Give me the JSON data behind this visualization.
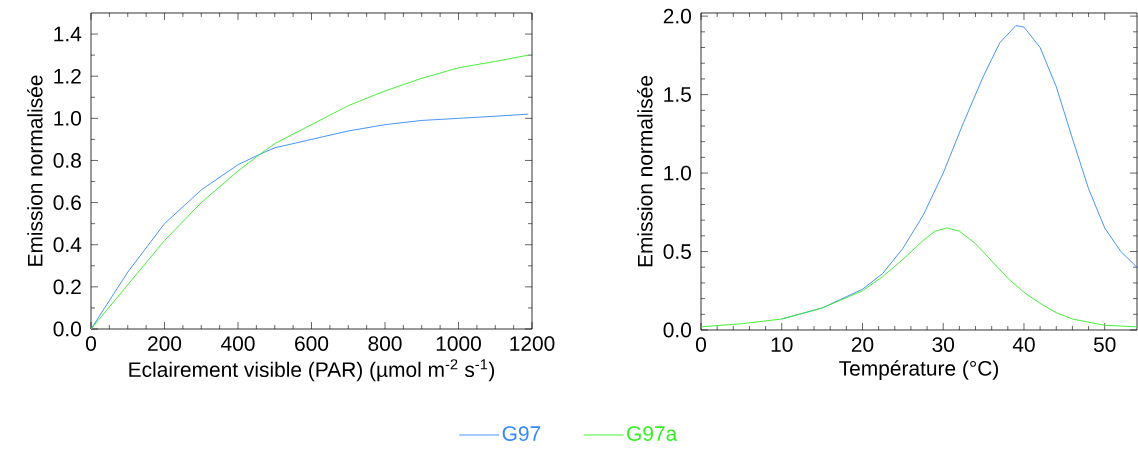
{
  "chart_data": [
    {
      "type": "line",
      "xlabel": "Eclairement visible (PAR) (µmol m$^{-2}$ s$^{-1}$)",
      "ylabel": "Emission normalisée",
      "xlim": [
        0,
        1200
      ],
      "ylim": [
        0,
        1.5
      ],
      "xticks": [
        0,
        200,
        400,
        600,
        800,
        1000,
        1200
      ],
      "yticks": [
        {
          "value": 0,
          "label": "0.0"
        },
        0.2,
        0.4,
        0.6,
        0.8,
        {
          "value": 1,
          "label": "1.0"
        },
        1.2,
        1.4
      ],
      "legend": "bottom",
      "grid": false,
      "series": [
        {
          "name": "G97",
          "color": "#3388ff",
          "x": [
            0,
            100,
            200,
            300,
            400,
            460,
            500,
            600,
            700,
            800,
            900,
            1000,
            1100,
            1190
          ],
          "values": [
            0,
            0.27,
            0.5,
            0.66,
            0.78,
            0.83,
            0.86,
            0.9,
            0.94,
            0.97,
            0.99,
            1.0,
            1.01,
            1.02
          ]
        },
        {
          "name": "G97a",
          "color": "#33ee22",
          "x": [
            0,
            100,
            200,
            300,
            400,
            460,
            500,
            600,
            700,
            800,
            900,
            1000,
            1100,
            1190
          ],
          "values": [
            0,
            0.21,
            0.42,
            0.6,
            0.75,
            0.83,
            0.88,
            0.97,
            1.06,
            1.13,
            1.19,
            1.24,
            1.27,
            1.3
          ]
        }
      ]
    },
    {
      "type": "line",
      "xlabel": "Température (°C)",
      "ylabel": "Emission normalisée",
      "xlim": [
        0,
        54
      ],
      "ylim": [
        0,
        2.02
      ],
      "xticks": [
        0,
        10,
        20,
        30,
        40,
        50
      ],
      "yticks": [
        {
          "value": 0,
          "label": "0.0"
        },
        0.5,
        {
          "value": 1,
          "label": "1.0"
        },
        1.5,
        {
          "value": 2,
          "label": "2.0"
        }
      ],
      "grid": false,
      "series": [
        {
          "color": "#3388ff",
          "x": [
            10,
            15,
            20,
            22.5,
            25,
            27.5,
            30,
            32.5,
            35,
            37,
            39,
            40,
            42,
            44,
            46,
            48,
            50,
            52,
            54
          ],
          "values": [
            0.07,
            0.14,
            0.26,
            0.36,
            0.52,
            0.73,
            1.0,
            1.32,
            1.62,
            1.83,
            1.94,
            1.93,
            1.8,
            1.55,
            1.22,
            0.9,
            0.65,
            0.5,
            0.4
          ]
        },
        {
          "color": "#33ee22",
          "x": [
            0,
            5,
            10,
            15,
            20,
            22.5,
            25,
            27.5,
            29,
            30.5,
            32,
            34,
            36,
            38,
            40,
            42,
            44,
            46,
            48,
            50,
            54
          ],
          "values": [
            0.02,
            0.04,
            0.07,
            0.14,
            0.25,
            0.34,
            0.45,
            0.57,
            0.63,
            0.65,
            0.63,
            0.55,
            0.44,
            0.33,
            0.24,
            0.17,
            0.11,
            0.07,
            0.05,
            0.03,
            0.02
          ]
        }
      ]
    }
  ]
}
